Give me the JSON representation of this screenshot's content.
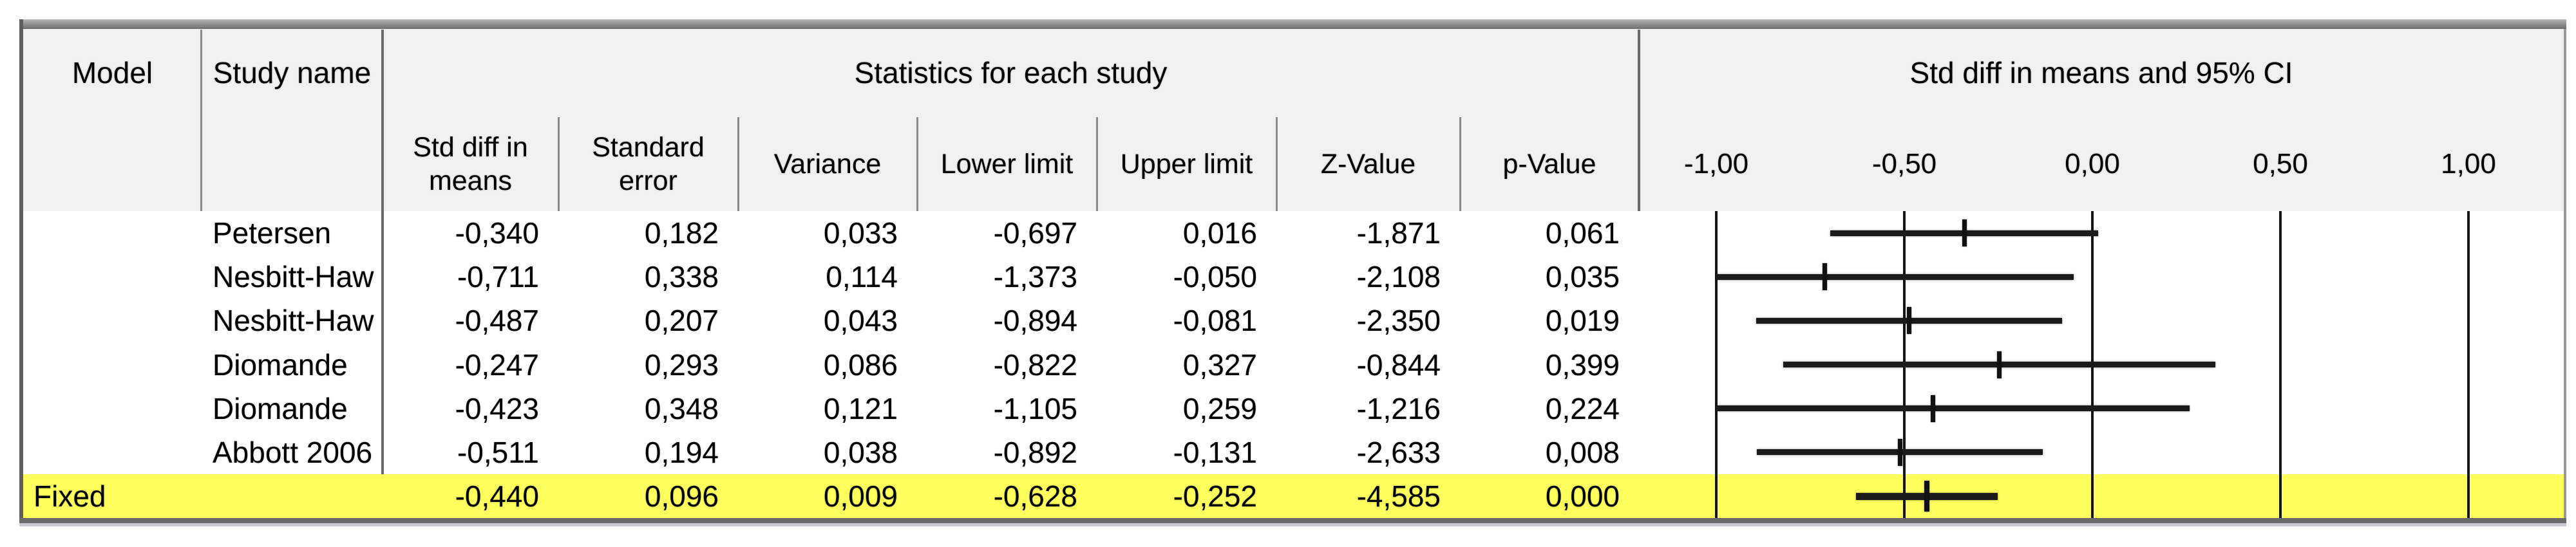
{
  "app": {
    "description": "Meta-analysis fixed-effect forest plot grid (Comprehensive Meta Analysis style)"
  },
  "header": {
    "model_col": "Model",
    "study_col": "Study name",
    "stats_group": "Statistics for each study",
    "plot_group": "Std diff in means and 95% CI",
    "stat_columns": [
      "Std diff in\nmeans",
      "Standard\nerror",
      "Variance",
      "Lower limit",
      "Upper limit",
      "Z-Value",
      "p-Value"
    ]
  },
  "table": {
    "rows": [
      {
        "model": "",
        "study": "Petersen",
        "values": [
          "-0,340",
          "0,182",
          "0,033",
          "-0,697",
          "0,016",
          "-1,871",
          "0,061"
        ],
        "highlighted": false
      },
      {
        "model": "",
        "study": "Nesbitt-Haw",
        "values": [
          "-0,711",
          "0,338",
          "0,114",
          "-1,373",
          "-0,050",
          "-2,108",
          "0,035"
        ],
        "highlighted": false
      },
      {
        "model": "",
        "study": "Nesbitt-Haw",
        "values": [
          "-0,487",
          "0,207",
          "0,043",
          "-0,894",
          "-0,081",
          "-2,350",
          "0,019"
        ],
        "highlighted": false
      },
      {
        "model": "",
        "study": "Diomande",
        "values": [
          "-0,247",
          "0,293",
          "0,086",
          "-0,822",
          "0,327",
          "-0,844",
          "0,399"
        ],
        "highlighted": false
      },
      {
        "model": "",
        "study": "Diomande",
        "values": [
          "-0,423",
          "0,348",
          "0,121",
          "-1,105",
          "0,259",
          "-1,216",
          "0,224"
        ],
        "highlighted": false
      },
      {
        "model": "",
        "study": "Abbott 2006",
        "values": [
          "-0,511",
          "0,194",
          "0,038",
          "-0,892",
          "-0,131",
          "-2,633",
          "0,008"
        ],
        "highlighted": false
      },
      {
        "model": "Fixed",
        "study": "",
        "values": [
          "-0,440",
          "0,096",
          "0,009",
          "-0,628",
          "-0,252",
          "-4,585",
          "0,000"
        ],
        "highlighted": true
      }
    ]
  },
  "chart_data": {
    "type": "forest",
    "title": "Std diff in means and 95% CI",
    "effect_measure": "Std diff in means",
    "x_ticks": [
      -1.0,
      -0.5,
      0.0,
      0.5,
      1.0
    ],
    "x_tick_labels": [
      "-1,00",
      "-0,50",
      "0,00",
      "0,50",
      "1,00"
    ],
    "x_clip_range": [
      -1.0,
      1.0
    ],
    "grid": true,
    "studies": [
      {
        "name": "Petersen",
        "mean": -0.34,
        "lower": -0.697,
        "upper": 0.016,
        "combined": false
      },
      {
        "name": "Nesbitt-Haw",
        "mean": -0.711,
        "lower": -1.373,
        "upper": -0.05,
        "combined": false
      },
      {
        "name": "Nesbitt-Haw",
        "mean": -0.487,
        "lower": -0.894,
        "upper": -0.081,
        "combined": false
      },
      {
        "name": "Diomande",
        "mean": -0.247,
        "lower": -0.822,
        "upper": 0.327,
        "combined": false
      },
      {
        "name": "Diomande",
        "mean": -0.423,
        "lower": -1.105,
        "upper": 0.259,
        "combined": false
      },
      {
        "name": "Abbott 2006",
        "mean": -0.511,
        "lower": -0.892,
        "upper": -0.131,
        "combined": false
      },
      {
        "name": "Fixed",
        "mean": -0.44,
        "lower": -0.628,
        "upper": -0.252,
        "combined": true
      }
    ]
  },
  "colors": {
    "highlight_row": "#ffff5e",
    "header_bg": "#f1f1f1",
    "border_dark": "#6a6a6a",
    "divider_gray": "#8a8a8a",
    "right_border": "#9a9a9a",
    "bottom_shadow": "#c9c9cf",
    "grid_line": "#141414",
    "text": "#000000"
  }
}
